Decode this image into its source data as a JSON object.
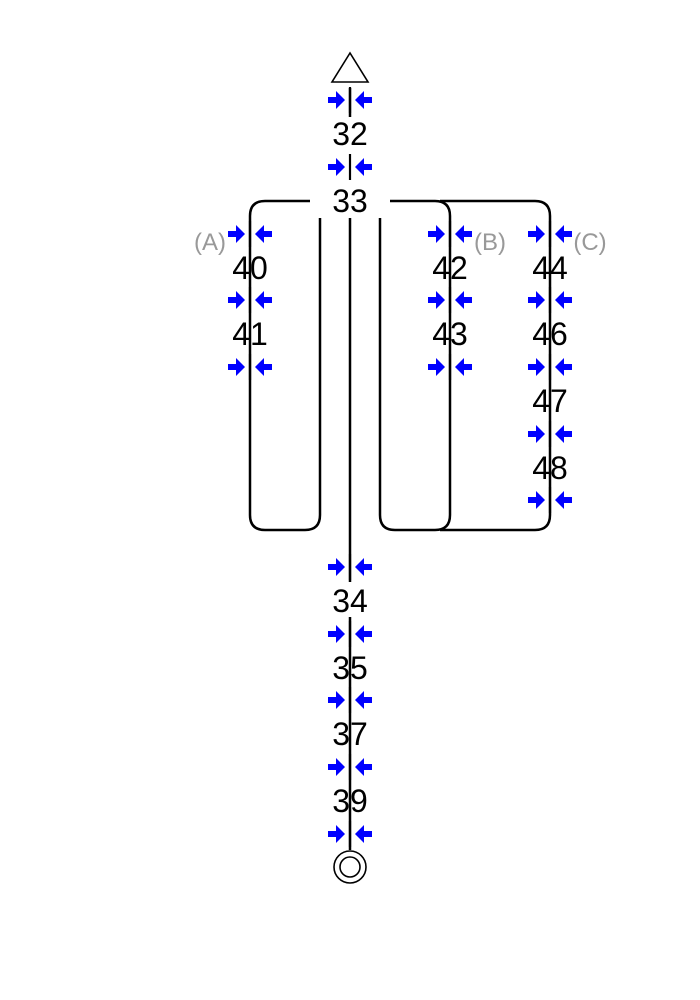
{
  "colors": {
    "route": "#000000",
    "marker": "#0000ff",
    "branch_label": "#999999"
  },
  "icons": {
    "start": "triangle-icon",
    "end": "double-circle-icon",
    "marker": "inward-arrows-icon"
  },
  "trunk_upper": {
    "stops": [
      "32",
      "33"
    ]
  },
  "branch_a": {
    "label": "(A)",
    "stops": [
      "40",
      "41"
    ]
  },
  "branch_b": {
    "label": "(B)",
    "stops": [
      "42",
      "43"
    ]
  },
  "branch_c": {
    "label": "(C)",
    "stops": [
      "44",
      "46",
      "47",
      "48"
    ]
  },
  "trunk_lower": {
    "stops": [
      "34",
      "35",
      "37",
      "39"
    ]
  }
}
